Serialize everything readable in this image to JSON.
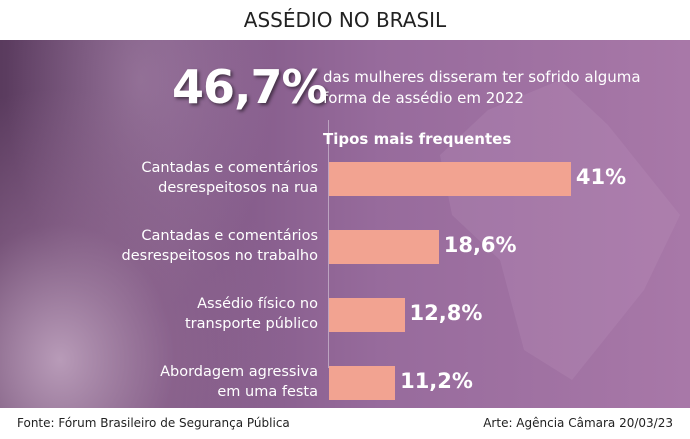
{
  "title": "ASSÉDIO NO BRASIL",
  "headline": {
    "value": "46,7%",
    "text_line1": "das mulheres disseram ter sofrido alguma",
    "text_line2": "forma de assédio em 2022"
  },
  "chart_data": {
    "type": "bar",
    "orientation": "horizontal",
    "title": "Tipos mais frequentes",
    "categories": [
      [
        "Cantadas e comentários",
        "desrespeitosos na rua"
      ],
      [
        "Cantadas e comentários",
        "desrespeitosos no trabalho"
      ],
      [
        "Assédio físico no",
        "transporte público"
      ],
      [
        "Abordagem agressiva",
        "em uma festa"
      ]
    ],
    "values": [
      41,
      18.6,
      12.8,
      11.2
    ],
    "value_labels": [
      "41%",
      "18,6%",
      "12,8%",
      "11,2%"
    ],
    "bar_color": "#f2a391"
  },
  "footer": {
    "source": "Fonte: Fórum Brasileiro de Segurança Pública",
    "credit": "Arte: Agência Câmara 20/03/23"
  }
}
